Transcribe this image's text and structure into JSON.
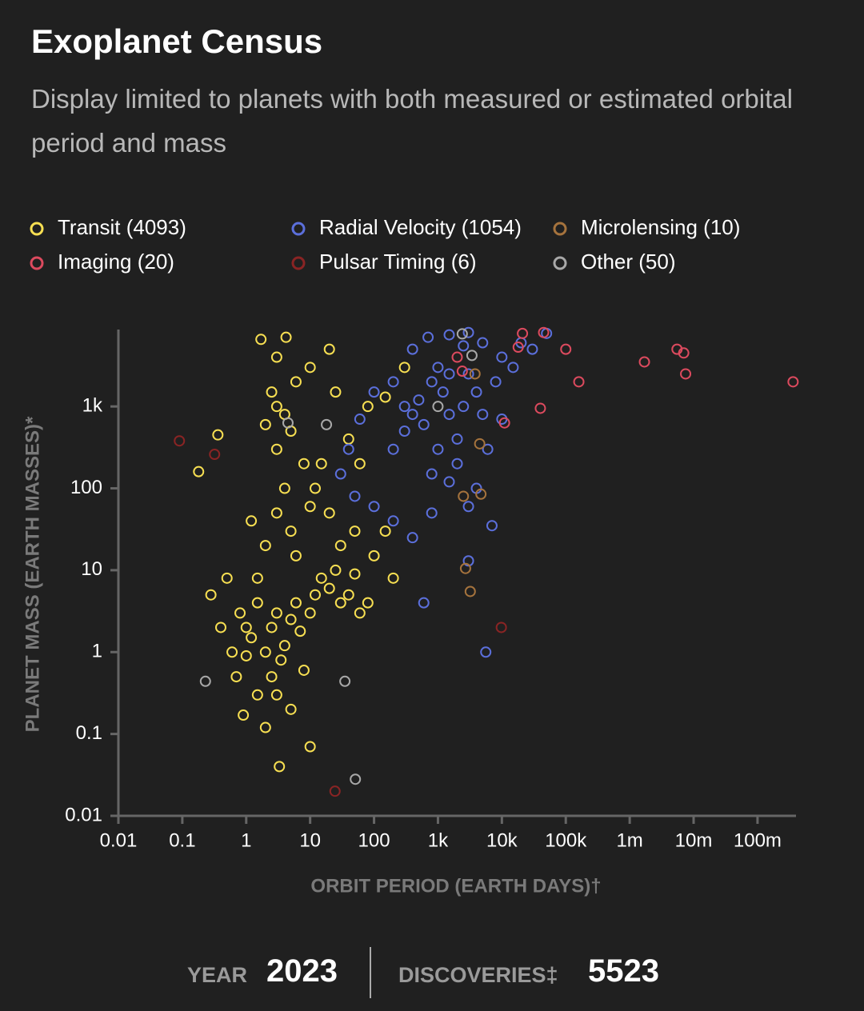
{
  "chart_data": {
    "type": "scatter",
    "title": "Exoplanet Census",
    "subtitle": "Display limited to planets with both measured or estimated orbital period and mass",
    "x_label": "ORBIT PERIOD (EARTH DAYS)†",
    "y_label": "PLANET MASS (EARTH MASSES)*",
    "xscale": "log",
    "yscale": "log",
    "xlim": [
      0.01,
      400000000
    ],
    "ylim": [
      0.01,
      8700
    ],
    "xticks": [
      0.01,
      0.1,
      1,
      10,
      100,
      {
        "value": 1000,
        "label": "1k"
      },
      {
        "value": 10000,
        "label": "10k"
      },
      {
        "value": 100000,
        "label": "100k"
      },
      {
        "value": 1000000,
        "label": "1m"
      },
      {
        "value": 10000000,
        "label": "10m"
      },
      {
        "value": 100000000,
        "label": "100m"
      }
    ],
    "yticks": [
      0.01,
      0.1,
      1,
      10,
      100,
      {
        "value": 1000,
        "label": "1k"
      }
    ],
    "series": [
      {
        "name": "Transit (4093)",
        "color": "#f7df52",
        "x": [
          0.8,
          1,
          1.2,
          1.5,
          2,
          2.5,
          3,
          3.5,
          4,
          5,
          6,
          7,
          8,
          10,
          12,
          15,
          20,
          25,
          30,
          40,
          50,
          60,
          80,
          1.5,
          2.5,
          3.3,
          10,
          5,
          0.7,
          0.9,
          2,
          3,
          1,
          0.6,
          0.4,
          1.5,
          2,
          3,
          4,
          3,
          2,
          3,
          4,
          5,
          2.5,
          1.7,
          4.2,
          3,
          6,
          10,
          20,
          8,
          12,
          20,
          30,
          50,
          100,
          150,
          200,
          40,
          60,
          80,
          150,
          300,
          0.18,
          0.36,
          0.28,
          0.5,
          1.2,
          6,
          15,
          25,
          5,
          10
        ],
        "y": [
          3,
          2,
          1.5,
          4,
          1,
          2,
          3,
          0.8,
          1.2,
          2.5,
          4,
          1.8,
          0.6,
          3,
          5,
          8,
          6,
          10,
          4,
          5,
          9,
          3,
          4,
          0.3,
          0.5,
          0.04,
          0.07,
          0.2,
          0.5,
          0.17,
          0.12,
          0.3,
          0.9,
          1,
          2,
          8,
          20,
          50,
          100,
          300,
          600,
          1000,
          800,
          500,
          1500,
          6600,
          7000,
          4000,
          2000,
          3000,
          5000,
          200,
          100,
          50,
          20,
          30,
          15,
          30,
          8,
          400,
          200,
          1000,
          1300,
          3000,
          160,
          450,
          5,
          8,
          40,
          15,
          200,
          1500,
          30,
          60
        ]
      },
      {
        "name": "Radial Velocity (1054)",
        "color": "#5b6fdb",
        "x": [
          200,
          300,
          400,
          500,
          600,
          800,
          1000,
          1200,
          1500,
          2000,
          2500,
          3000,
          4000,
          5000,
          6000,
          8000,
          10000,
          15000,
          20000,
          30000,
          5000,
          3000,
          1500,
          700,
          400,
          200,
          100,
          60,
          40,
          30,
          50,
          100,
          200,
          400,
          800,
          1500,
          2000,
          3000,
          4000,
          600,
          3000,
          7000,
          5600,
          50000,
          1000,
          800,
          300,
          1500,
          10000,
          2500
        ],
        "y": [
          300,
          500,
          800,
          1200,
          600,
          2000,
          3000,
          1500,
          800,
          400,
          1000,
          2500,
          1500,
          800,
          300,
          2000,
          4000,
          3000,
          6000,
          5000,
          6000,
          8000,
          7500,
          7000,
          5000,
          2000,
          1500,
          700,
          300,
          150,
          80,
          60,
          40,
          25,
          50,
          120,
          200,
          60,
          100,
          4,
          13,
          35,
          1,
          7800,
          300,
          150,
          1000,
          2500,
          700,
          5500
        ]
      },
      {
        "name": "Microlensing (10)",
        "color": "#a5733d",
        "x": [
          2700,
          3200,
          4500,
          4700,
          2500,
          3800
        ],
        "y": [
          10.5,
          5.5,
          350,
          85,
          80,
          2500
        ]
      },
      {
        "name": "Imaging (20)",
        "color": "#dc4a5e",
        "x": [
          360000000,
          7500000,
          7000000,
          5500000,
          1700000,
          160000,
          100000,
          45000,
          21000,
          18000,
          40000,
          11000,
          2400,
          2000
        ],
        "y": [
          2000,
          2500,
          4500,
          5000,
          3500,
          2000,
          5000,
          8000,
          7800,
          5300,
          950,
          630,
          2700,
          4000
        ]
      },
      {
        "name": "Pulsar Timing (6)",
        "color": "#8a2424",
        "x": [
          0.09,
          0.32,
          24.5,
          9800
        ],
        "y": [
          380,
          260,
          0.02,
          2
        ]
      },
      {
        "name": "Other (50)",
        "color": "#a8a8a8",
        "x": [
          0.23,
          51,
          35,
          2400,
          3400,
          1000,
          18,
          4.5
        ],
        "y": [
          0.44,
          0.028,
          0.44,
          7700,
          4200,
          1000,
          600,
          630
        ]
      }
    ]
  },
  "footer": {
    "year_label": "YEAR",
    "year": 2023,
    "discoveries_label": "DISCOVERIES‡",
    "discoveries": 5523
  }
}
